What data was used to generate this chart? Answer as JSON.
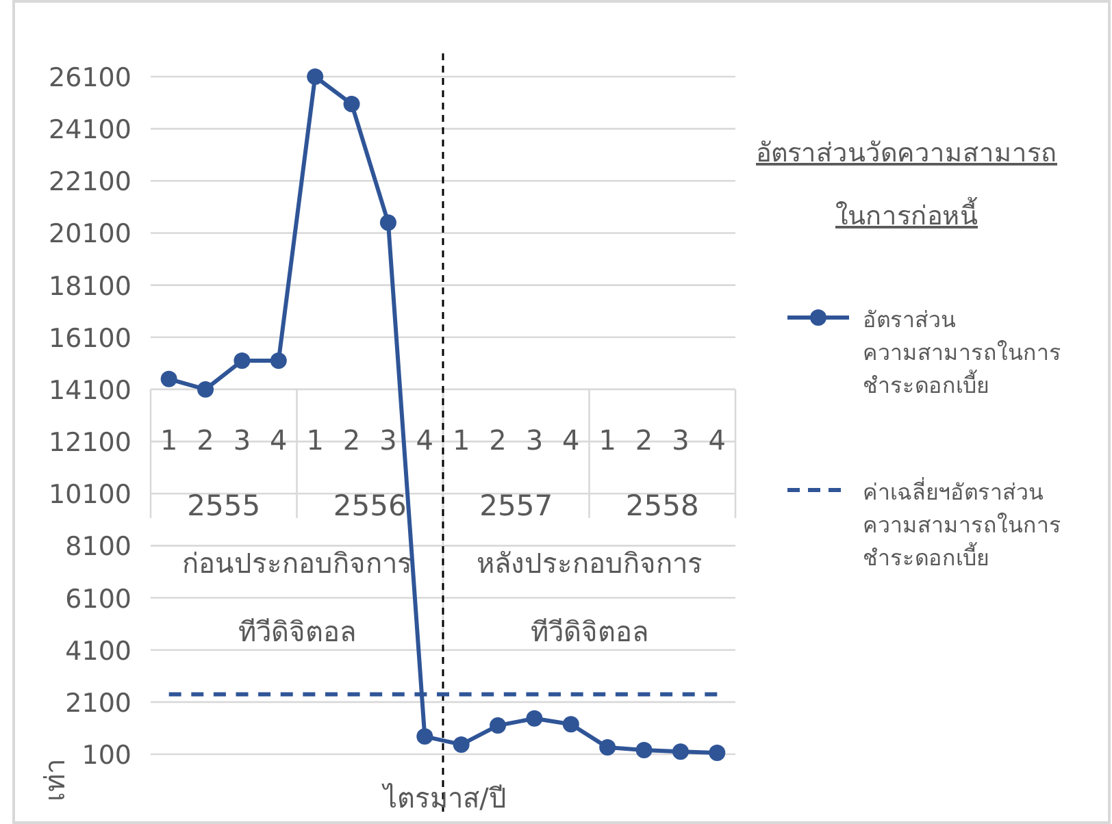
{
  "chart_data": {
    "type": "line",
    "title": "อัตราส่วนวัดความสามารถ\nในการก่อหนี้",
    "xlabel": "ไตรมาส/ปี",
    "ylabel": "เท่า",
    "categories": [
      "1",
      "2",
      "3",
      "4",
      "1",
      "2",
      "3",
      "4",
      "1",
      "2",
      "3",
      "4",
      "1",
      "2",
      "3",
      "4"
    ],
    "annotations": [
      "2555",
      "2556",
      "2557",
      "2558",
      "ก่อนประกอบกิจการ\nทีวีดิจิตอล",
      "หลังประกอบกิจการ\nทีวีดิจิตอล"
    ],
    "series": [
      {
        "name": "อัตราส่วน\nความสามารถในการ\nชำระดอกเบี้ย",
        "color": "#2f5597",
        "marker": "circle",
        "line_style": "solid",
        "values": [
          14500,
          14100,
          15200,
          15200,
          26100,
          25050,
          20500,
          780,
          470,
          1200,
          1470,
          1250,
          360,
          260,
          200,
          150
        ]
      },
      {
        "name": "ค่าเฉลี่ยฯอัตราส่วน\nความสามารถในการ\nชำระดอกเบี้ย",
        "color": "#2f5597",
        "marker": "none",
        "line_style": "dashed",
        "values": [
          2400,
          2400,
          2400,
          2400,
          2400,
          2400,
          2400,
          2400,
          2400,
          2400,
          2400,
          2400,
          2400,
          2400,
          2400,
          2400
        ]
      }
    ],
    "ylim": [
      100,
      26100
    ],
    "yticks": [
      100,
      2100,
      4100,
      6100,
      8100,
      10100,
      12100,
      14100,
      16100,
      18100,
      20100,
      22100,
      24100,
      26100
    ],
    "grid": "y",
    "legend": "right"
  }
}
